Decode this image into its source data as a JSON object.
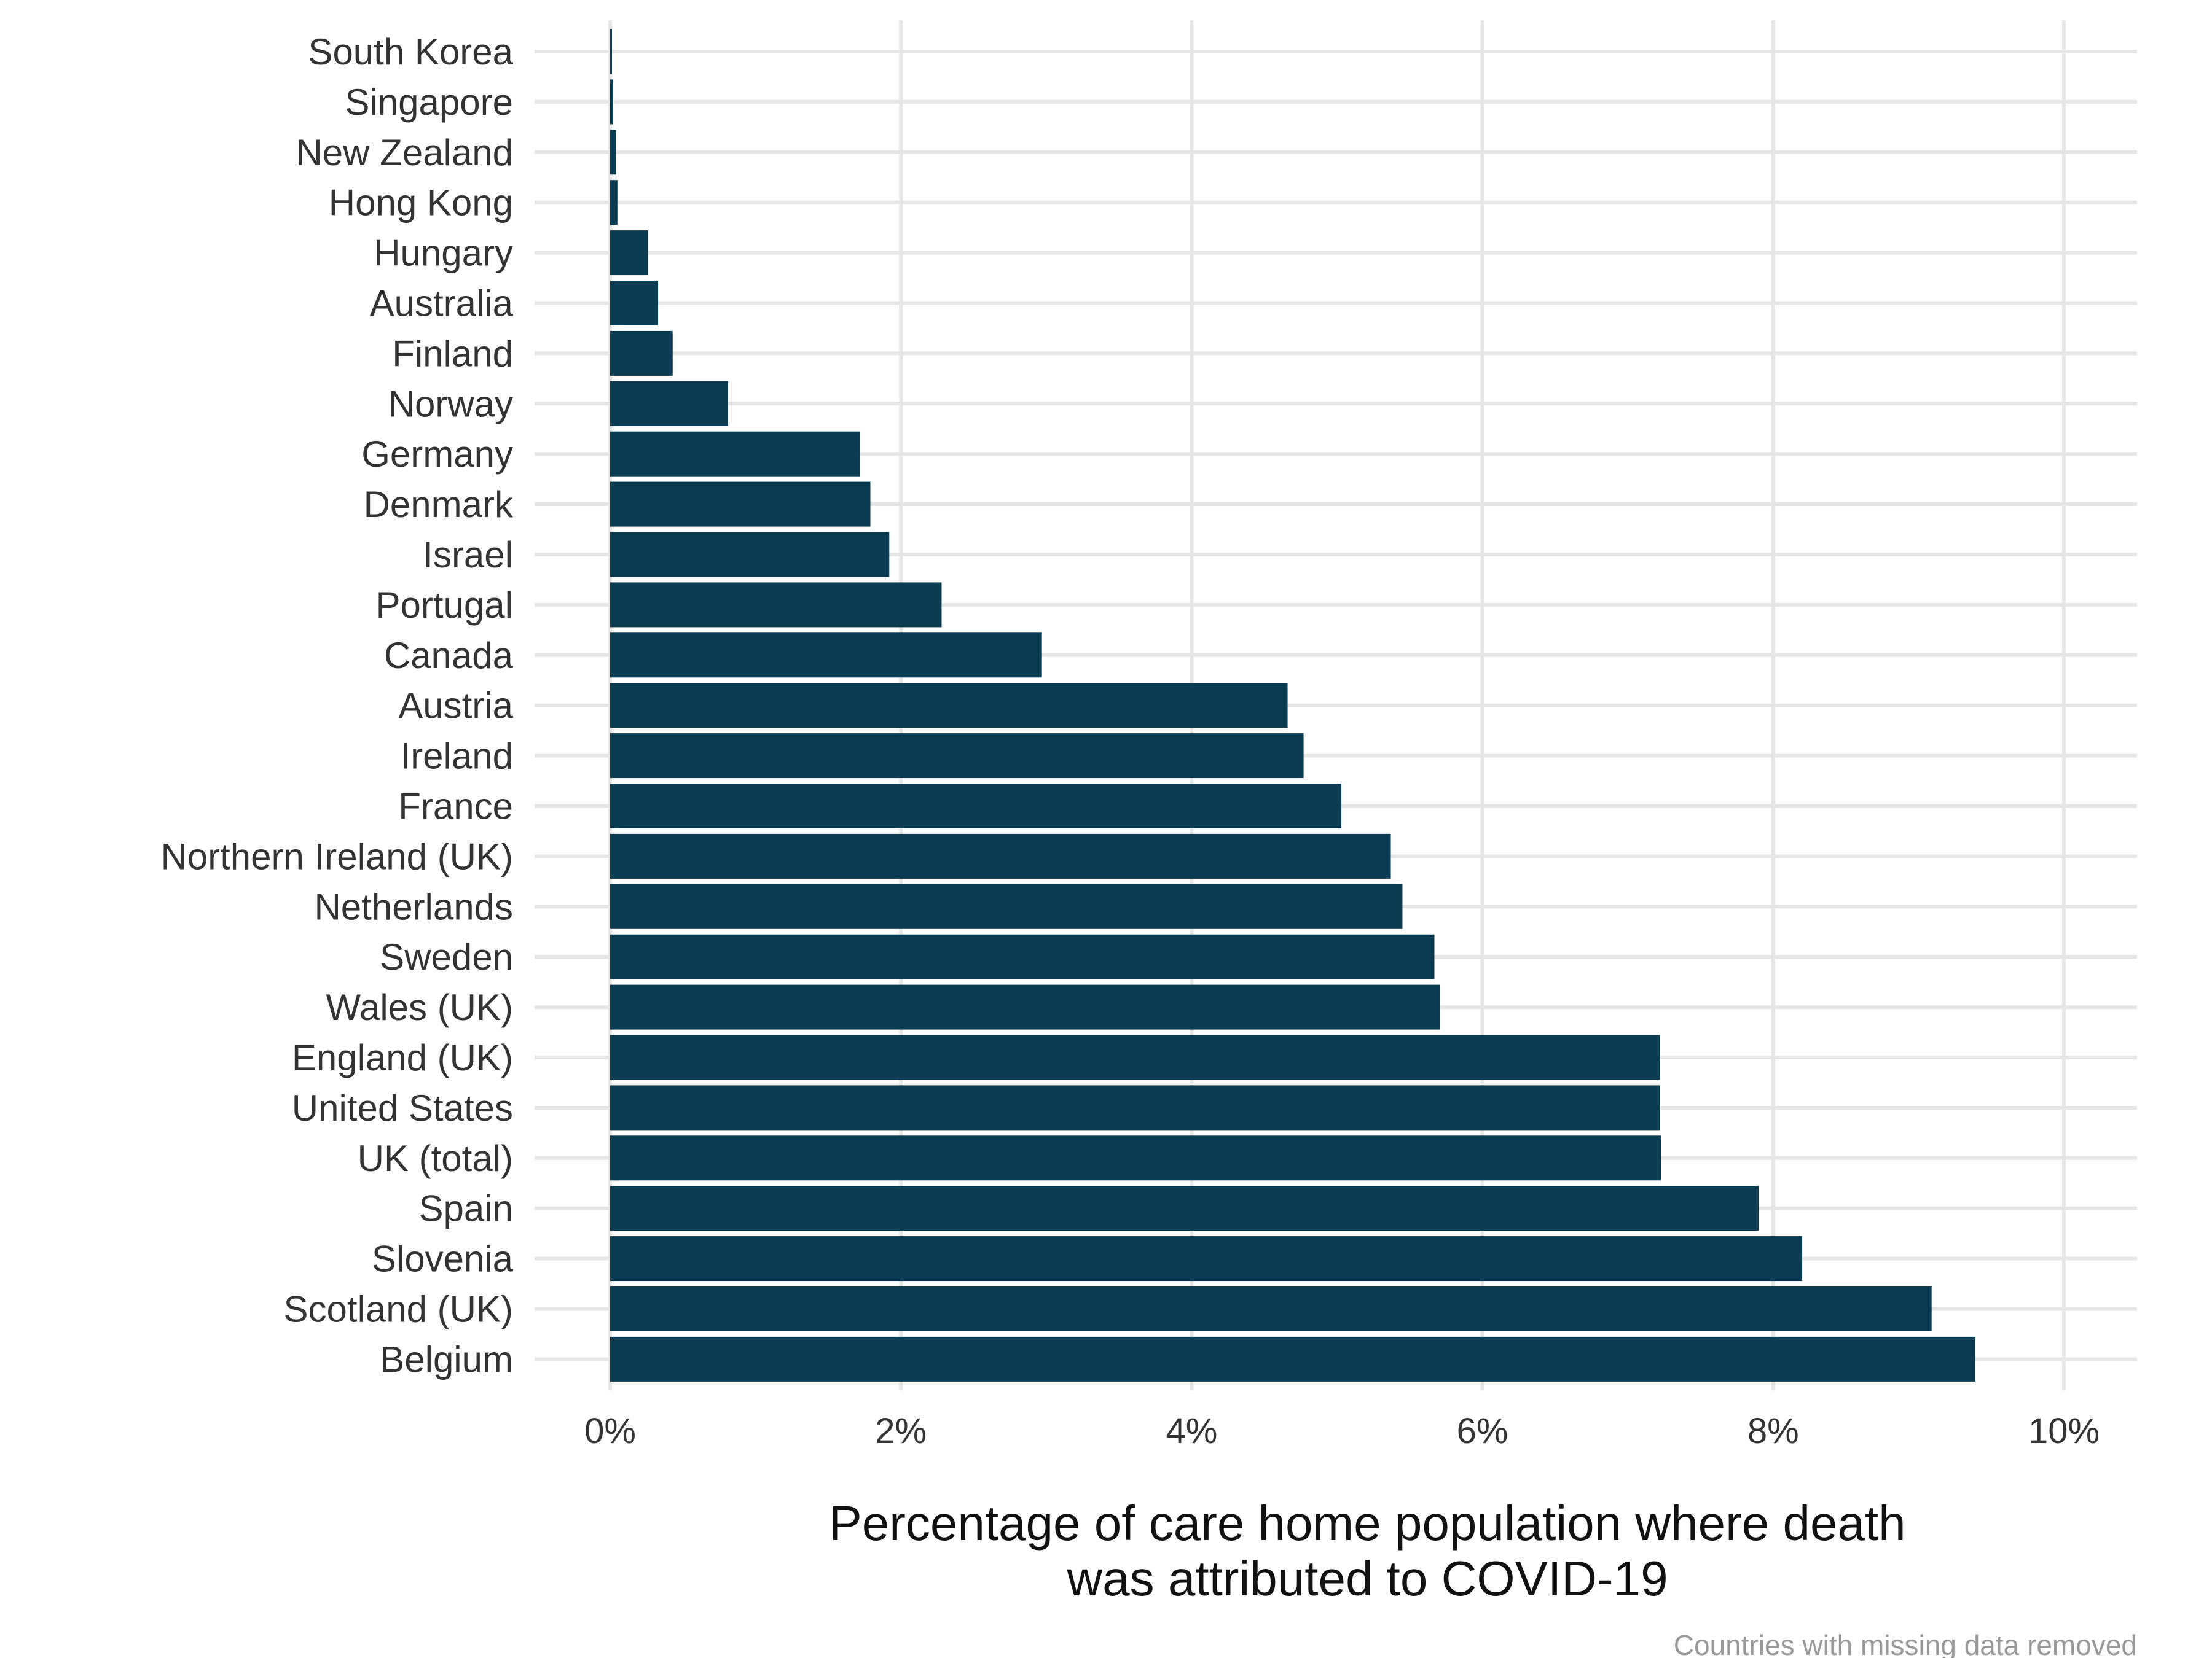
{
  "chart_data": {
    "type": "bar",
    "orientation": "horizontal",
    "categories": [
      "South Korea",
      "Singapore",
      "New Zealand",
      "Hong Kong",
      "Hungary",
      "Australia",
      "Finland",
      "Norway",
      "Germany",
      "Denmark",
      "Israel",
      "Portugal",
      "Canada",
      "Austria",
      "Ireland",
      "France",
      "Northern Ireland (UK)",
      "Netherlands",
      "Sweden",
      "Wales (UK)",
      "England (UK)",
      "United States",
      "UK (total)",
      "Spain",
      "Slovenia",
      "Scotland (UK)",
      "Belgium"
    ],
    "values": [
      0.01,
      0.02,
      0.04,
      0.05,
      0.26,
      0.33,
      0.43,
      0.81,
      1.72,
      1.79,
      1.92,
      2.28,
      2.97,
      4.66,
      4.77,
      5.03,
      5.37,
      5.45,
      5.67,
      5.71,
      7.22,
      7.22,
      7.23,
      7.9,
      8.2,
      9.09,
      9.39
    ],
    "xlim": [
      0,
      10
    ],
    "xticks": [
      0,
      2,
      4,
      6,
      8,
      10
    ],
    "xtick_labels": [
      "0%",
      "2%",
      "4%",
      "6%",
      "8%",
      "10%"
    ],
    "xlabel_lines": [
      "Percentage of care home population where death",
      "was attributed to COVID-19"
    ],
    "caption": "Countries with missing data removed",
    "grid": true,
    "bar_color": "#0b3c51",
    "grid_color": "#e6e6e6"
  }
}
